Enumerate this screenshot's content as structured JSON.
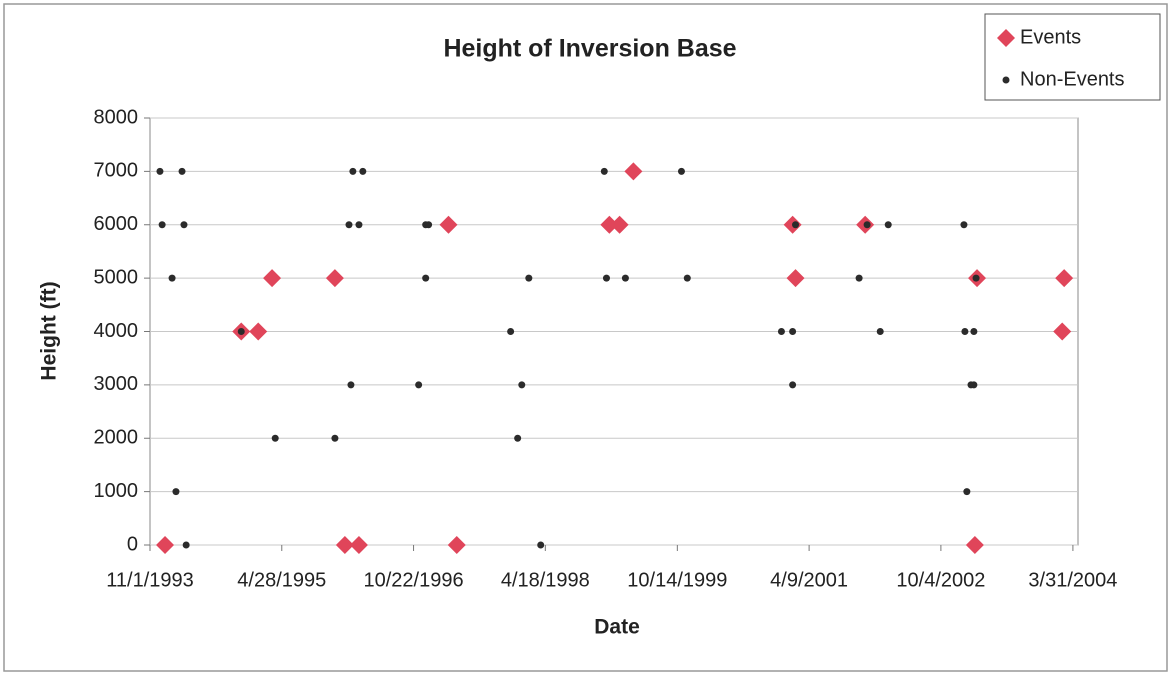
{
  "chart_data": {
    "type": "scatter",
    "title": "Height of Inversion Base",
    "x_label": "Date",
    "y_label": "Height (ft)",
    "xlim": [
      "11/1/1993",
      "4/21/2004"
    ],
    "xticks": [
      "11/1/1993",
      "4/28/1995",
      "10/22/1996",
      "4/18/1998",
      "10/14/1999",
      "4/9/2001",
      "10/4/2002",
      "3/31/2004"
    ],
    "ylim": [
      0,
      8000
    ],
    "yticks": [
      0,
      1000,
      2000,
      3000,
      4000,
      5000,
      6000,
      7000,
      8000
    ],
    "grid": true,
    "legend": "upper right",
    "series": [
      {
        "name": "Events",
        "color": "#e0455a",
        "marker": "diamond",
        "x": [
          "1/2/1994",
          "11/12/1994",
          "1/21/1995",
          "3/19/1995",
          "12/3/1995",
          "1/13/1996",
          "3/11/1996",
          "3/15/1997",
          "4/18/1997",
          "1/7/1999",
          "2/18/1999",
          "4/16/1999",
          "1/31/2001",
          "2/12/2001",
          "11/26/2001",
          "2/21/2003",
          "3/2/2003",
          "2/24/2004",
          "2/16/2004"
        ],
        "values": [
          0,
          4000,
          4000,
          5000,
          5000,
          0,
          0,
          6000,
          0,
          6000,
          6000,
          7000,
          6000,
          5000,
          6000,
          0,
          5000,
          5000,
          4000
        ]
      },
      {
        "name": "Non-Events",
        "color": "#2b2b2b",
        "marker": "circle",
        "x": [
          "12/12/1993",
          "12/21/1993",
          "1/31/1994",
          "2/16/1994",
          "3/13/1994",
          "3/21/1994",
          "3/30/1994",
          "11/12/1994",
          "4/1/1995",
          "12/3/1995",
          "1/30/1996",
          "2/7/1996",
          "2/15/1996",
          "3/11/1996",
          "3/27/1996",
          "11/12/1996",
          "12/11/1996",
          "12/11/1996",
          "12/23/1996",
          "11/26/1997",
          "12/25/1997",
          "1/11/1998",
          "2/9/1998",
          "3/30/1998",
          "12/17/1998",
          "12/26/1998",
          "3/14/1999",
          "10/31/1999",
          "11/24/1999",
          "12/16/2000",
          "1/31/2001",
          "1/31/2001",
          "2/12/2001",
          "11/1/2001",
          "12/4/2001",
          "1/27/2002",
          "3/1/2002",
          "1/7/2003",
          "1/11/2003",
          "1/19/2003",
          "2/5/2003",
          "2/17/2003",
          "2/17/2003",
          "2/26/2003"
        ],
        "values": [
          7000,
          6000,
          5000,
          1000,
          7000,
          6000,
          0,
          4000,
          2000,
          2000,
          6000,
          3000,
          7000,
          6000,
          7000,
          3000,
          6000,
          5000,
          6000,
          4000,
          2000,
          3000,
          5000,
          0,
          7000,
          5000,
          5000,
          7000,
          5000,
          4000,
          4000,
          3000,
          6000,
          5000,
          6000,
          4000,
          6000,
          6000,
          4000,
          1000,
          3000,
          3000,
          4000,
          5000
        ]
      }
    ]
  }
}
